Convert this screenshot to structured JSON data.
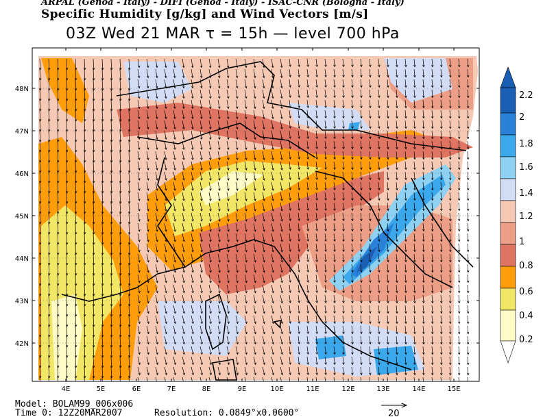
{
  "header": {
    "line1": "ARPAL (Genoa - Italy)  -  DIFI (Genoa - Italy)  -  ISAC-CNR (Bologna - Italy)",
    "line2": "Specific Humidity [g/kg] and Wind Vectors [m/s]",
    "line3": "03Z Wed 21 MAR  τ = 15h  —  level 700 hPa"
  },
  "axes": {
    "lon_labels": [
      "4E",
      "5E",
      "6E",
      "7E",
      "8E",
      "9E",
      "10E",
      "11E",
      "12E",
      "13E",
      "14E",
      "15E"
    ],
    "lat_labels": [
      "48N",
      "47N",
      "46N",
      "45N",
      "44N",
      "43N",
      "42N"
    ]
  },
  "colorbar": {
    "labels": [
      "2.2",
      "2",
      "1.8",
      "1.6",
      "1.4",
      "1.2",
      "1",
      "0.8",
      "0.6",
      "0.4",
      "0.2"
    ],
    "colors": [
      "#1a5fb4",
      "#2a82d8",
      "#3aa8ea",
      "#8fd1f2",
      "#d2dcf5",
      "#f6c9b4",
      "#ec9e86",
      "#df7462",
      "#ff9e0a",
      "#f2e667",
      "#fefbc6"
    ]
  },
  "footer": {
    "model": "Model: BOLAM99_006x006",
    "time": "Time 0: 12Z20MAR2007",
    "resolution": "Resolution: 0.0849°x0.0600°",
    "ref_vector": "20"
  }
}
